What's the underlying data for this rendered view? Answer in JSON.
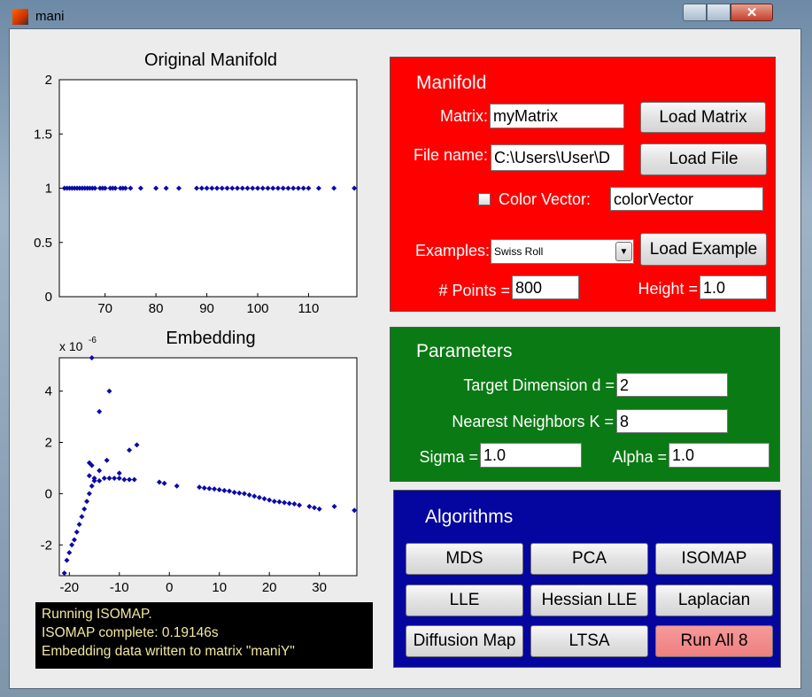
{
  "window": {
    "title": "mani"
  },
  "chart_data": [
    {
      "type": "scatter",
      "title": "Original Manifold",
      "color": "#0a0aa8",
      "x": [
        62,
        62.5,
        63,
        63.5,
        64,
        64.5,
        65,
        65.5,
        66,
        66.5,
        67,
        67.5,
        68,
        69,
        69.5,
        70,
        71,
        71.5,
        72,
        73,
        73.5,
        74,
        75,
        77,
        80,
        82,
        84.5,
        88,
        89,
        90,
        91,
        92,
        93,
        94,
        95,
        96,
        97,
        98,
        99,
        100,
        101,
        102,
        103,
        104,
        105,
        106,
        107,
        108,
        109,
        110,
        112,
        115,
        119
      ],
      "values": [
        1,
        1,
        1,
        1,
        1,
        1,
        1,
        1,
        1,
        1,
        1,
        1,
        1,
        1,
        1,
        1,
        1,
        1,
        1,
        1,
        1,
        1,
        1,
        1,
        1,
        1,
        1,
        1,
        1,
        1,
        1,
        1,
        1,
        1,
        1,
        1,
        1,
        1,
        1,
        1,
        1,
        1,
        1,
        1,
        1,
        1,
        1,
        1,
        1,
        1,
        1,
        1,
        1
      ],
      "xlim": [
        61,
        119.5
      ],
      "ylim": [
        0,
        2
      ],
      "xticks": [
        70,
        80,
        90,
        100,
        110
      ],
      "yticks": [
        0,
        0.5,
        1,
        1.5,
        2
      ]
    },
    {
      "type": "scatter",
      "title": "Embedding",
      "color": "#0a0aa8",
      "y_scale_label": "x 10",
      "y_scale_exponent": "-6",
      "x": [
        -21,
        -20.5,
        -20,
        -19.5,
        -19,
        -18.5,
        -18,
        -17.5,
        -17,
        -16.5,
        -16,
        -15.5,
        -15,
        -14,
        -13,
        -12,
        -11,
        -10,
        -9,
        -8,
        -7,
        -16,
        -15.5,
        -16,
        -15,
        -14,
        -12.5,
        -10,
        -8,
        -6.5,
        -14,
        -12,
        -15.5,
        -2,
        -1,
        1.5,
        6,
        7,
        8,
        9,
        10,
        11,
        12,
        13,
        14,
        15,
        16,
        17,
        18,
        19,
        20,
        21,
        22,
        23,
        24,
        25,
        26,
        28,
        29,
        30,
        33,
        37
      ],
      "values": [
        -3.1,
        -2.6,
        -2.3,
        -2,
        -1.8,
        -1.5,
        -1.2,
        -0.9,
        -0.6,
        -0.3,
        0,
        0.3,
        0.5,
        0.5,
        0.6,
        0.6,
        0.6,
        0.6,
        0.55,
        0.55,
        0.55,
        1.2,
        1.1,
        0.7,
        0.6,
        0.9,
        1.3,
        0.8,
        1.7,
        1.9,
        3.2,
        4,
        5.3,
        0.45,
        0.4,
        0.3,
        0.25,
        0.22,
        0.2,
        0.18,
        0.15,
        0.12,
        0.1,
        0.05,
        0.02,
        0,
        -0.05,
        -0.1,
        -0.15,
        -0.2,
        -0.25,
        -0.3,
        -0.32,
        -0.35,
        -0.38,
        -0.4,
        -0.45,
        -0.5,
        -0.55,
        -0.6,
        -0.5,
        -0.65
      ],
      "xlim": [
        -22,
        37.5
      ],
      "ylim": [
        -3.2,
        5.3
      ],
      "xticks": [
        -20,
        -10,
        0,
        10,
        20,
        30
      ],
      "yticks": [
        -2,
        0,
        2,
        4
      ]
    }
  ],
  "status": [
    "Running ISOMAP.",
    "ISOMAP complete: 0.19146s",
    "Embedding data written to matrix \"maniY\""
  ],
  "manifold": {
    "title": "Manifold",
    "matrix_label": "Matrix:",
    "matrix_value": "myMatrix",
    "load_matrix": "Load Matrix",
    "file_label": "File name:",
    "file_value": "C:\\Users\\User\\D",
    "load_file": "Load File",
    "color_label": "Color Vector:",
    "color_value": "colorVector",
    "examples_label": "Examples:",
    "example_value": "Swiss Roll",
    "load_example": "Load Example",
    "points_label": "# Points =",
    "points_value": "800",
    "height_label": "Height =",
    "height_value": "1.0"
  },
  "parameters": {
    "title": "Parameters",
    "target_label": "Target Dimension d =",
    "target_value": "2",
    "neighbors_label": "Nearest Neighbors K =",
    "neighbors_value": "8",
    "sigma_label": "Sigma =",
    "sigma_value": "1.0",
    "alpha_label": "Alpha =",
    "alpha_value": "1.0"
  },
  "algorithms": {
    "title": "Algorithms",
    "buttons": [
      "MDS",
      "PCA",
      "ISOMAP",
      "LLE",
      "Hessian LLE",
      "Laplacian",
      "Diffusion Map",
      "LTSA",
      "Run All 8"
    ]
  }
}
